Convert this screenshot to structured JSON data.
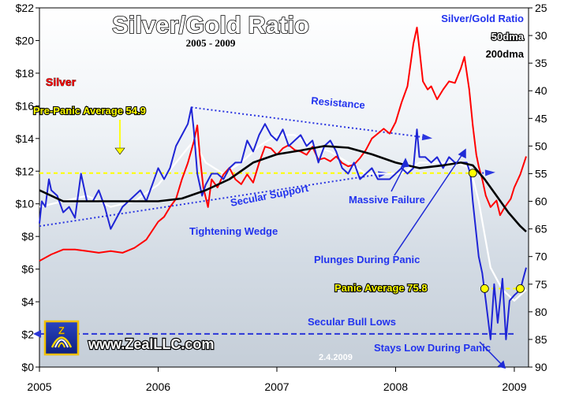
{
  "chart_data": {
    "type": "line",
    "title": "Silver/Gold Ratio",
    "subtitle": "2005 - 2009",
    "left_axis": {
      "ylim": [
        0,
        22
      ],
      "ticks": [
        "$0",
        "$2",
        "$4",
        "$6",
        "$8",
        "$10",
        "$12",
        "$14",
        "$16",
        "$18",
        "$20",
        "$22"
      ]
    },
    "right_axis": {
      "ylim": [
        90,
        25
      ],
      "inverted": true,
      "ticks": [
        "25",
        "30",
        "35",
        "40",
        "45",
        "50",
        "55",
        "60",
        "65",
        "70",
        "75",
        "80",
        "85",
        "90"
      ]
    },
    "x_axis": {
      "range": [
        2005.0,
        2009.12
      ],
      "ticks": [
        "2005",
        "2006",
        "2007",
        "2008",
        "2009"
      ]
    },
    "grid": false,
    "legend": {
      "placement": "top-right",
      "entries": [
        "Silver/Gold Ratio",
        "50dma",
        "200dma"
      ]
    },
    "series": [
      {
        "name": "Silver",
        "axis": "left",
        "color": "#ff0000",
        "points": [
          [
            2005.0,
            6.5
          ],
          [
            2005.1,
            6.9
          ],
          [
            2005.2,
            7.2
          ],
          [
            2005.3,
            7.2
          ],
          [
            2005.4,
            7.1
          ],
          [
            2005.5,
            7.0
          ],
          [
            2005.6,
            7.1
          ],
          [
            2005.7,
            7.0
          ],
          [
            2005.8,
            7.3
          ],
          [
            2005.9,
            7.8
          ],
          [
            2006.0,
            8.9
          ],
          [
            2006.05,
            9.2
          ],
          [
            2006.1,
            9.8
          ],
          [
            2006.15,
            10.3
          ],
          [
            2006.2,
            11.5
          ],
          [
            2006.25,
            12.5
          ],
          [
            2006.3,
            13.8
          ],
          [
            2006.33,
            14.8
          ],
          [
            2006.35,
            13.0
          ],
          [
            2006.38,
            11.0
          ],
          [
            2006.42,
            9.8
          ],
          [
            2006.45,
            11.5
          ],
          [
            2006.5,
            11.0
          ],
          [
            2006.55,
            11.8
          ],
          [
            2006.6,
            12.2
          ],
          [
            2006.65,
            11.5
          ],
          [
            2006.7,
            11.2
          ],
          [
            2006.75,
            11.8
          ],
          [
            2006.8,
            11.3
          ],
          [
            2006.85,
            12.5
          ],
          [
            2006.9,
            13.5
          ],
          [
            2006.95,
            13.4
          ],
          [
            2007.0,
            13.0
          ],
          [
            2007.05,
            13.4
          ],
          [
            2007.1,
            13.6
          ],
          [
            2007.15,
            13.3
          ],
          [
            2007.2,
            13.2
          ],
          [
            2007.25,
            13.0
          ],
          [
            2007.3,
            13.5
          ],
          [
            2007.35,
            12.7
          ],
          [
            2007.4,
            12.8
          ],
          [
            2007.45,
            12.6
          ],
          [
            2007.5,
            12.9
          ],
          [
            2007.55,
            12.5
          ],
          [
            2007.6,
            12.3
          ],
          [
            2007.65,
            12.4
          ],
          [
            2007.7,
            12.8
          ],
          [
            2007.75,
            13.3
          ],
          [
            2007.8,
            14.0
          ],
          [
            2007.85,
            14.3
          ],
          [
            2007.9,
            14.6
          ],
          [
            2007.95,
            14.3
          ],
          [
            2008.0,
            15.0
          ],
          [
            2008.05,
            16.2
          ],
          [
            2008.1,
            17.2
          ],
          [
            2008.15,
            19.8
          ],
          [
            2008.18,
            20.8
          ],
          [
            2008.2,
            19.5
          ],
          [
            2008.23,
            17.5
          ],
          [
            2008.27,
            17.0
          ],
          [
            2008.3,
            17.2
          ],
          [
            2008.35,
            16.4
          ],
          [
            2008.4,
            17.0
          ],
          [
            2008.45,
            17.5
          ],
          [
            2008.5,
            17.4
          ],
          [
            2008.55,
            18.3
          ],
          [
            2008.58,
            19.0
          ],
          [
            2008.62,
            17.0
          ],
          [
            2008.65,
            14.8
          ],
          [
            2008.68,
            13.0
          ],
          [
            2008.7,
            12.3
          ],
          [
            2008.73,
            11.5
          ],
          [
            2008.76,
            10.5
          ],
          [
            2008.8,
            9.8
          ],
          [
            2008.85,
            10.2
          ],
          [
            2008.88,
            9.3
          ],
          [
            2008.92,
            9.8
          ],
          [
            2008.97,
            10.3
          ],
          [
            2009.0,
            11.0
          ],
          [
            2009.05,
            11.8
          ],
          [
            2009.1,
            12.9
          ]
        ]
      },
      {
        "name": "Silver/Gold Ratio",
        "axis": "right",
        "color": "#1f25d6",
        "points": [
          [
            2005.0,
            64
          ],
          [
            2005.02,
            60
          ],
          [
            2005.05,
            61
          ],
          [
            2005.08,
            56
          ],
          [
            2005.1,
            58
          ],
          [
            2005.15,
            59
          ],
          [
            2005.2,
            62
          ],
          [
            2005.25,
            61
          ],
          [
            2005.3,
            63
          ],
          [
            2005.35,
            55
          ],
          [
            2005.4,
            60
          ],
          [
            2005.45,
            60
          ],
          [
            2005.5,
            58
          ],
          [
            2005.55,
            61
          ],
          [
            2005.6,
            65
          ],
          [
            2005.65,
            63
          ],
          [
            2005.7,
            61
          ],
          [
            2005.75,
            60
          ],
          [
            2005.8,
            59
          ],
          [
            2005.85,
            58
          ],
          [
            2005.9,
            60
          ],
          [
            2005.95,
            57
          ],
          [
            2006.0,
            54
          ],
          [
            2006.05,
            56
          ],
          [
            2006.1,
            54
          ],
          [
            2006.15,
            50
          ],
          [
            2006.2,
            48
          ],
          [
            2006.25,
            46
          ],
          [
            2006.28,
            43
          ],
          [
            2006.3,
            47
          ],
          [
            2006.33,
            55
          ],
          [
            2006.37,
            59
          ],
          [
            2006.4,
            57
          ],
          [
            2006.45,
            55
          ],
          [
            2006.5,
            55
          ],
          [
            2006.55,
            56
          ],
          [
            2006.6,
            54
          ],
          [
            2006.65,
            53
          ],
          [
            2006.7,
            53
          ],
          [
            2006.75,
            49
          ],
          [
            2006.8,
            51
          ],
          [
            2006.85,
            48
          ],
          [
            2006.9,
            46
          ],
          [
            2006.95,
            48
          ],
          [
            2007.0,
            49
          ],
          [
            2007.05,
            47
          ],
          [
            2007.1,
            50
          ],
          [
            2007.15,
            49
          ],
          [
            2007.2,
            48
          ],
          [
            2007.25,
            50
          ],
          [
            2007.3,
            49
          ],
          [
            2007.35,
            53
          ],
          [
            2007.4,
            50
          ],
          [
            2007.45,
            49
          ],
          [
            2007.5,
            51
          ],
          [
            2007.55,
            54
          ],
          [
            2007.6,
            55
          ],
          [
            2007.65,
            53
          ],
          [
            2007.7,
            56
          ],
          [
            2007.75,
            55
          ],
          [
            2007.8,
            54
          ],
          [
            2007.85,
            56
          ],
          [
            2007.9,
            56
          ],
          [
            2007.95,
            56
          ],
          [
            2008.0,
            55
          ],
          [
            2008.05,
            54
          ],
          [
            2008.1,
            55
          ],
          [
            2008.15,
            54
          ],
          [
            2008.18,
            47
          ],
          [
            2008.2,
            52
          ],
          [
            2008.25,
            52
          ],
          [
            2008.3,
            53
          ],
          [
            2008.35,
            52
          ],
          [
            2008.4,
            54
          ],
          [
            2008.45,
            52
          ],
          [
            2008.5,
            53
          ],
          [
            2008.55,
            53
          ],
          [
            2008.6,
            53
          ],
          [
            2008.63,
            55
          ],
          [
            2008.65,
            60
          ],
          [
            2008.68,
            66
          ],
          [
            2008.7,
            70
          ],
          [
            2008.73,
            73
          ],
          [
            2008.76,
            78
          ],
          [
            2008.8,
            85
          ],
          [
            2008.83,
            75
          ],
          [
            2008.86,
            82
          ],
          [
            2008.9,
            74
          ],
          [
            2008.93,
            85
          ],
          [
            2008.96,
            78
          ],
          [
            2009.0,
            77
          ],
          [
            2009.05,
            76
          ],
          [
            2009.1,
            72
          ]
        ]
      },
      {
        "name": "50dma",
        "axis": "right",
        "color": "#ffffff",
        "points": [
          [
            2005.0,
            61
          ],
          [
            2005.2,
            60
          ],
          [
            2005.4,
            59
          ],
          [
            2005.6,
            61
          ],
          [
            2005.8,
            60
          ],
          [
            2006.0,
            57
          ],
          [
            2006.15,
            53
          ],
          [
            2006.3,
            49
          ],
          [
            2006.4,
            53
          ],
          [
            2006.55,
            55
          ],
          [
            2006.7,
            53
          ],
          [
            2006.85,
            50
          ],
          [
            2007.0,
            48
          ],
          [
            2007.15,
            48
          ],
          [
            2007.3,
            50
          ],
          [
            2007.45,
            51
          ],
          [
            2007.6,
            53
          ],
          [
            2007.75,
            55
          ],
          [
            2007.9,
            55
          ],
          [
            2008.05,
            55
          ],
          [
            2008.2,
            53
          ],
          [
            2008.35,
            53
          ],
          [
            2008.5,
            53
          ],
          [
            2008.63,
            54
          ],
          [
            2008.7,
            60
          ],
          [
            2008.8,
            72
          ],
          [
            2008.9,
            76
          ],
          [
            2009.0,
            78
          ],
          [
            2009.1,
            76
          ]
        ]
      },
      {
        "name": "200dma",
        "axis": "right",
        "color": "#000000",
        "points": [
          [
            2005.0,
            58
          ],
          [
            2005.2,
            60
          ],
          [
            2005.4,
            60
          ],
          [
            2005.6,
            60
          ],
          [
            2005.8,
            60
          ],
          [
            2006.0,
            60
          ],
          [
            2006.2,
            59.5
          ],
          [
            2006.4,
            58
          ],
          [
            2006.6,
            56
          ],
          [
            2006.8,
            53
          ],
          [
            2007.0,
            51.5
          ],
          [
            2007.2,
            50.8
          ],
          [
            2007.4,
            50
          ],
          [
            2007.6,
            50.3
          ],
          [
            2007.8,
            51.5
          ],
          [
            2008.0,
            53
          ],
          [
            2008.2,
            54
          ],
          [
            2008.4,
            53.5
          ],
          [
            2008.55,
            53
          ],
          [
            2008.65,
            53.5
          ],
          [
            2008.75,
            56
          ],
          [
            2008.85,
            59
          ],
          [
            2008.95,
            62
          ],
          [
            2009.05,
            64.5
          ],
          [
            2009.1,
            65.5
          ]
        ]
      }
    ],
    "reference_lines": [
      {
        "label": "Pre-Panic Average 54.9",
        "value": 54.9,
        "axis": "right",
        "x_from": 2005.0,
        "x_to": 2008.65,
        "color": "#ffff00"
      },
      {
        "label": "Panic Average 75.8",
        "value": 75.8,
        "axis": "right",
        "x_from": 2008.75,
        "x_to": 2009.05,
        "color": "#ffff00"
      },
      {
        "label": "Secular Bull Lows",
        "value": 84,
        "axis": "right",
        "x_from": 2005.0,
        "x_to": 2009.0,
        "color": "#2b36d8"
      }
    ],
    "trend_lines": [
      {
        "label": "Resistance",
        "from": [
          2006.28,
          43
        ],
        "to": [
          2008.27,
          48.5
        ]
      },
      {
        "label": "Secular Support",
        "from": [
          2005.0,
          64.5
        ],
        "to": [
          2007.9,
          55
        ]
      },
      {
        "label": "",
        "from": [
          2008.63,
          55
        ],
        "to": [
          2008.8,
          54.8
        ]
      }
    ],
    "annotations": {
      "silver_label": "Silver",
      "tightening_wedge": "Tightening Wedge",
      "massive_failure": "Massive Failure",
      "plunges": "Plunges During Panic",
      "stays_low": "Stays Low During Panic",
      "date": "2.4.2009",
      "website": "www.ZealLLC.com"
    }
  }
}
